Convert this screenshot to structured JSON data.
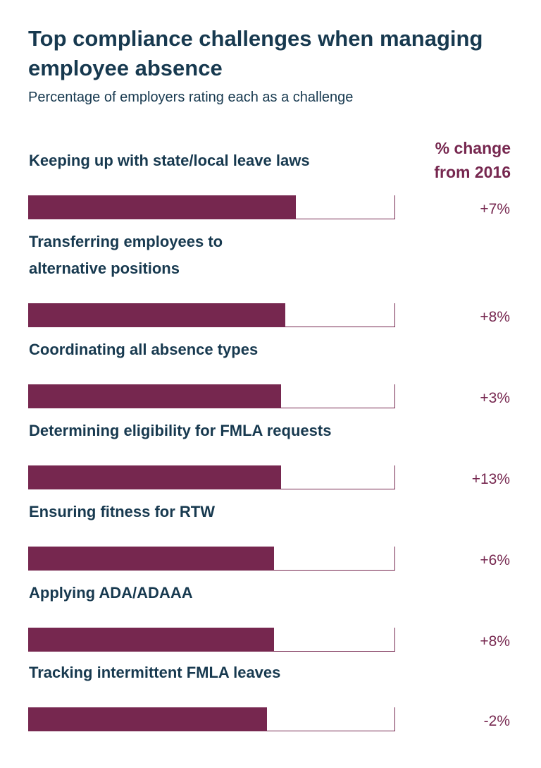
{
  "header": {
    "title": "Top compliance challenges when managing employee absence",
    "subtitle": "Percentage of employers rating each as a challenge",
    "change_header": "% change from 2016"
  },
  "colors": {
    "title": "#17394f",
    "bar": "#76274f"
  },
  "chart_data": {
    "type": "bar",
    "orientation": "horizontal",
    "title": "Top compliance challenges when managing employee absence",
    "subtitle": "Percentage of employers rating each as a challenge",
    "xlim": [
      0,
      100
    ],
    "categories": [
      "Keeping up with state/local leave laws",
      "Transferring employees to alternative positions",
      "Coordinating all absence types",
      "Determining eligibility for FMLA requests",
      "Ensuring fitness for RTW",
      "Applying ADA/ADAAA",
      "Tracking intermittent FMLA leaves"
    ],
    "values": [
      73,
      70,
      69,
      69,
      67,
      67,
      65
    ],
    "change_from_2016": [
      "+7%",
      "+8%",
      "+3%",
      "+13%",
      "+6%",
      "+8%",
      "-2%"
    ]
  }
}
